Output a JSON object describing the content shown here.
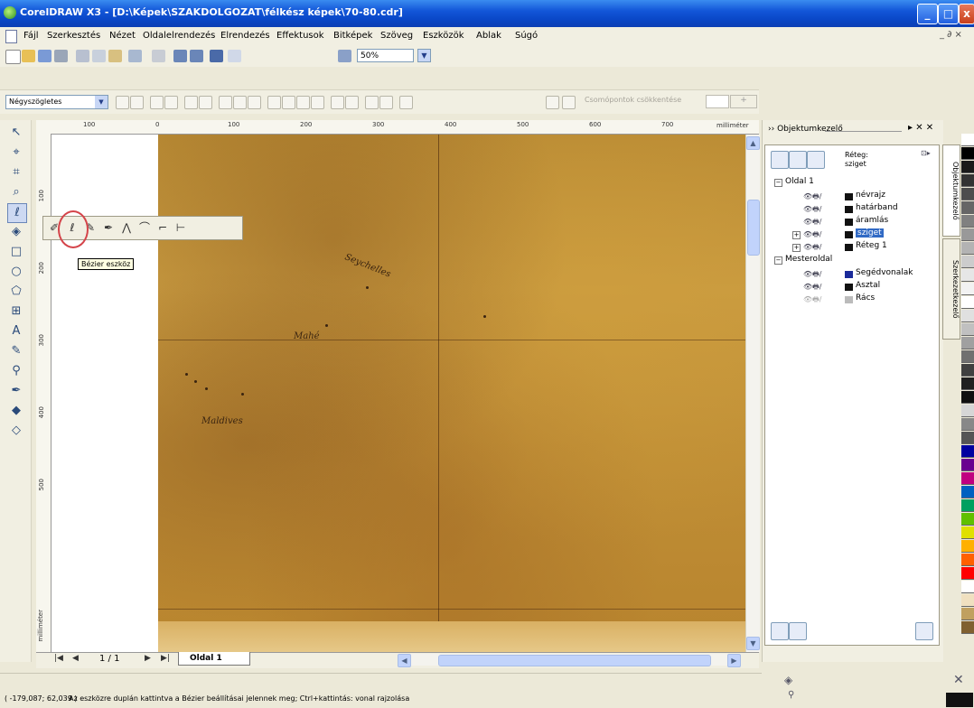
{
  "window": {
    "title": "CorelDRAW X3 - [D:\\Képek\\SZAKDOLGOZAT\\félkész képek\\70-80.cdr]",
    "controls": [
      "_",
      "□",
      "x"
    ]
  },
  "menu": [
    "Fájl",
    "Szerkesztés",
    "Nézet",
    "Oldalelrendezés",
    "Elrendezés",
    "Effektusok",
    "Bitképek",
    "Szöveg",
    "Eszközök",
    "Ablak",
    "Súgó"
  ],
  "mdi_controls": "_ ∂ ×",
  "toolbar": {
    "zoom_value": "50%"
  },
  "property_bar": {
    "shape_select": "Négyszögletes",
    "group_label": "Csomópontok csökkentése"
  },
  "rulers": {
    "top_ticks": [
      "100",
      "0",
      "100",
      "200",
      "300",
      "400",
      "500",
      "600",
      "700"
    ],
    "left_ticks": [
      "100",
      "200",
      "300",
      "400",
      "500"
    ],
    "unit": "milliméter"
  },
  "flyout": {
    "tooltip": "Bézier eszköz"
  },
  "map_labels": [
    "Seychelles",
    "Mahé",
    "Maldives"
  ],
  "page_nav": {
    "page_count": "1 / 1",
    "page_tab": "Oldal 1"
  },
  "status": {
    "coords": "( -179,087; 62,039 )",
    "message": "Az eszközre duplán kattintva a Bézier beállításai jelennek meg; Ctrl+kattintás: vonal rajzolása"
  },
  "object_manager": {
    "title": "Objektumkezelő",
    "layer_label_line1": "Réteg:",
    "layer_label_line2": "sziget",
    "page1": "Oldal 1",
    "layers": [
      "névrajz",
      "határband",
      "áramlás",
      "sziget",
      "Réteg 1"
    ],
    "master": "Mesteroldal",
    "master_layers": [
      "Segédvonalak",
      "Asztal",
      "Rács"
    ],
    "tabs": [
      "Objektumkezelő",
      "Szerkezetkezelő"
    ]
  },
  "colors": {
    "palette": [
      "#ffffff",
      "#000000",
      "#1a1a1a",
      "#333333",
      "#4d4d4d",
      "#666666",
      "#808080",
      "#999999",
      "#b3b3b3",
      "#cccccc",
      "#e6e6e6",
      "#f2f2f2",
      "#ffffff",
      "#e0e0e0",
      "#c0c0c0",
      "#a0a0a0",
      "#707070",
      "#404040",
      "#202020",
      "#101010",
      "#d6d6d6",
      "#888888",
      "#555555",
      "#0000a0",
      "#6a0090",
      "#c00080",
      "#0060c0",
      "#00a060",
      "#60c000",
      "#e0e000",
      "#ffb000",
      "#ff6000",
      "#ff0000",
      "#ffffff",
      "#f0e0c0",
      "#c0a060",
      "#806030"
    ]
  }
}
